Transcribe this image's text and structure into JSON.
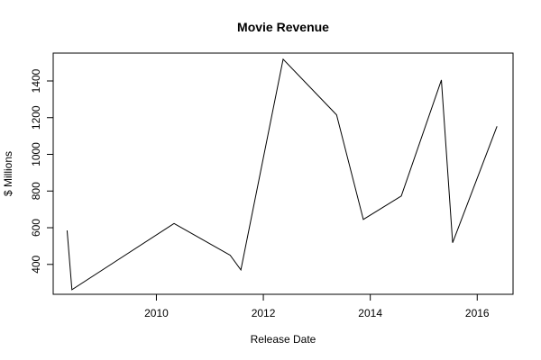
{
  "chart_data": {
    "type": "line",
    "title": "Movie Revenue",
    "xlabel": "Release Date",
    "ylabel": "$ Millions",
    "xlim": [
      2008.07,
      2016.67
    ],
    "ylim": [
      237,
      1552
    ],
    "xticks": [
      2010,
      2012,
      2014,
      2016
    ],
    "yticks": [
      400,
      600,
      800,
      1000,
      1200,
      1400
    ],
    "grid": false,
    "legend": "none",
    "line_color": "#000000",
    "series": [
      {
        "x": [
          2008.33,
          2008.42,
          2010.33,
          2011.38,
          2011.58,
          2012.37,
          2013.37,
          2013.87,
          2014.58,
          2015.33,
          2015.54,
          2016.37
        ],
        "y": [
          585,
          262,
          623,
          450,
          370,
          1519,
          1215,
          645,
          773,
          1405,
          518,
          1153
        ]
      }
    ]
  }
}
